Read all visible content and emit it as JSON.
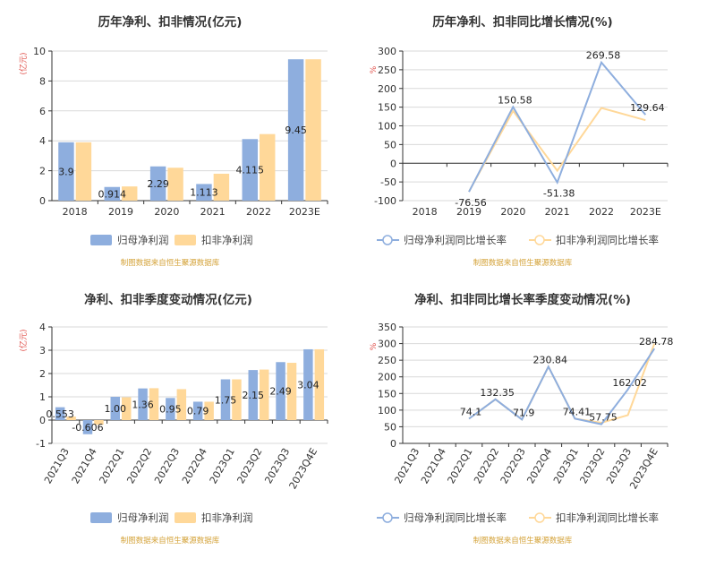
{
  "colors": {
    "series1": "#8eaede",
    "series2": "#ffd899",
    "unit": "#e0504a",
    "source": "#d4a33a"
  },
  "chart_data": [
    {
      "type": "bar",
      "title": "历年净利、扣非情况(亿元)",
      "ylabel": "(亿元)",
      "categories": [
        "2018",
        "2019",
        "2020",
        "2021",
        "2022",
        "2023E"
      ],
      "series": [
        {
          "name": "归母净利润",
          "values": [
            3.9,
            0.914,
            2.29,
            1.113,
            4.115,
            9.45
          ]
        },
        {
          "name": "扣非净利润",
          "values": [
            3.9,
            0.95,
            2.2,
            1.8,
            4.45,
            9.45
          ]
        }
      ],
      "data_labels": [
        "3.9",
        "0.914",
        "2.29",
        "1.113",
        "4.115",
        "9.45"
      ],
      "ylim": [
        0,
        10
      ],
      "yticks": [
        0,
        2,
        4,
        6,
        8,
        10
      ],
      "legend_position": "bottom",
      "source_note": "制图数据来自恒生聚源数据库"
    },
    {
      "type": "line",
      "title": "历年净利、扣非同比增长情况(%)",
      "ylabel": "%",
      "categories": [
        "2018",
        "2019",
        "2020",
        "2021",
        "2022",
        "2023E"
      ],
      "series": [
        {
          "name": "归母净利润同比增长率",
          "values": [
            null,
            -76.56,
            150.58,
            -51.38,
            269.58,
            129.64
          ]
        },
        {
          "name": "扣非净利润同比增长率",
          "values": [
            null,
            -76,
            140,
            -20,
            148,
            115
          ]
        }
      ],
      "data_labels": [
        "",
        "-76.56",
        "150.58",
        "-51.38",
        "269.58",
        "129.64"
      ],
      "ylim": [
        -100,
        300
      ],
      "yticks": [
        -100,
        -50,
        0,
        50,
        100,
        150,
        200,
        250,
        300
      ],
      "legend_position": "bottom",
      "source_note": "制图数据来自恒生聚源数据库"
    },
    {
      "type": "bar",
      "title": "净利、扣非季度变动情况(亿元)",
      "ylabel": "(亿元)",
      "categories": [
        "2021Q3",
        "2021Q4",
        "2022Q1",
        "2022Q2",
        "2022Q3",
        "2022Q4",
        "2023Q1",
        "2023Q2",
        "2023Q3",
        "2023Q4E"
      ],
      "series": [
        {
          "name": "归母净利润",
          "values": [
            0.553,
            -0.606,
            1.0,
            1.36,
            0.95,
            0.79,
            1.75,
            2.15,
            2.49,
            3.04
          ]
        },
        {
          "name": "扣非净利润",
          "values": [
            0.15,
            -0.2,
            0.98,
            1.37,
            1.33,
            0.79,
            1.75,
            2.17,
            2.46,
            3.04
          ]
        }
      ],
      "data_labels": [
        "0.553",
        "-0.606",
        "1.00",
        "1.36",
        "0.95",
        "0.79",
        "1.75",
        "2.15",
        "2.49",
        "3.04"
      ],
      "ylim": [
        -1,
        4
      ],
      "yticks": [
        -1,
        0,
        1,
        2,
        3,
        4
      ],
      "legend_position": "bottom",
      "source_note": "制图数据来自恒生聚源数据库"
    },
    {
      "type": "line",
      "title": "净利、扣非同比增长率季度变动情况(%)",
      "ylabel": "%",
      "categories": [
        "2021Q3",
        "2021Q4",
        "2022Q1",
        "2022Q2",
        "2022Q3",
        "2022Q4",
        "2023Q1",
        "2023Q2",
        "2023Q3",
        "2023Q4E"
      ],
      "series": [
        {
          "name": "归母净利润同比增长率",
          "values": [
            null,
            null,
            74.1,
            132.35,
            71.9,
            230.84,
            74.41,
            57.75,
            162.02,
            284.78
          ]
        },
        {
          "name": "扣非净利润同比增长率",
          "values": [
            null,
            null,
            74.1,
            132.35,
            71.9,
            230.84,
            74.41,
            62,
            85,
            300
          ]
        }
      ],
      "data_labels": [
        "",
        "",
        "74.1",
        "132.35",
        "71.9",
        "230.84",
        "74.41",
        "57.75",
        "162.02",
        "284.78"
      ],
      "ylim": [
        0,
        350
      ],
      "yticks": [
        0,
        50,
        100,
        150,
        200,
        250,
        300,
        350
      ],
      "legend_position": "bottom",
      "source_note": "制图数据来自恒生聚源数据库"
    }
  ]
}
